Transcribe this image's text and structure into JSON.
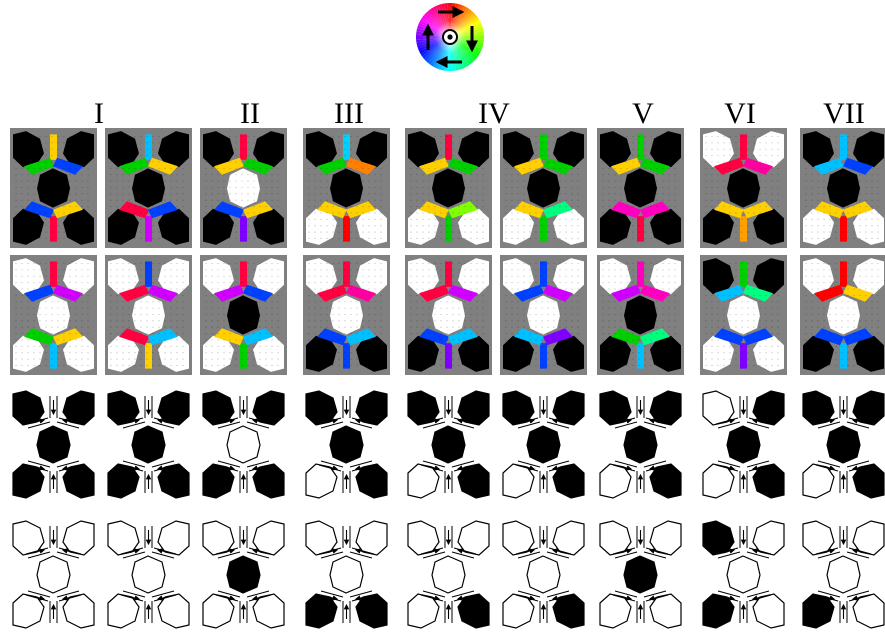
{
  "legend": {
    "name": "magnetization-color-wheel",
    "arrows": [
      "right",
      "down",
      "left",
      "up"
    ],
    "center": "out-of-plane"
  },
  "columns": [
    {
      "label": "I",
      "panels": 2
    },
    {
      "label": "II",
      "panels": 1
    },
    {
      "label": "III",
      "panels": 1
    },
    {
      "label": "IV",
      "panels": 2
    },
    {
      "label": "V",
      "panels": 1
    },
    {
      "label": "VI",
      "panels": 1
    },
    {
      "label": "VII",
      "panels": 1
    }
  ],
  "rows": {
    "sim_top": {
      "bg": "#808080",
      "panels": [
        {
          "top": "black",
          "center": "black",
          "bottom": "black",
          "upper": [
            "#ffd000",
            "#00d000",
            "#0040ff"
          ],
          "lower": [
            "#0040ff",
            "#ff0040",
            "#ffd000"
          ]
        },
        {
          "top": "black",
          "center": "black",
          "bottom": "black",
          "upper": [
            "#00c0ff",
            "#00d000",
            "#ffd000"
          ],
          "lower": [
            "#ff0040",
            "#d000ff",
            "#0040ff"
          ]
        },
        {
          "top": "black",
          "center": "white",
          "bottom": "black",
          "upper": [
            "#ff0040",
            "#ffd000",
            "#00d000"
          ],
          "lower": [
            "#0040ff",
            "#8000ff",
            "#ffd000"
          ]
        },
        {
          "top": "black",
          "center": "black",
          "bottom": "white",
          "upper": [
            "#00d0ff",
            "#00d000",
            "#ff8000"
          ],
          "lower": [
            "#ffd000",
            "#ff0000",
            "#ffd000"
          ]
        },
        {
          "top": "black",
          "center": "black",
          "bottom": "white",
          "upper": [
            "#ff0040",
            "#ffd000",
            "#00d000"
          ],
          "lower": [
            "#ffd000",
            "#00d000",
            "#80ff00"
          ]
        },
        {
          "top": "black",
          "center": "black",
          "bottom": "white",
          "upper": [
            "#00d000",
            "#ffd000",
            "#00d000"
          ],
          "lower": [
            "#ffd000",
            "#00d000",
            "#00ff80"
          ]
        },
        {
          "top": "black",
          "center": "black",
          "bottom": "black",
          "upper": [
            "#00d000",
            "#ffd000",
            "#00d000"
          ],
          "lower": [
            "#ff00c0",
            "#ff0040",
            "#ff00c0"
          ]
        },
        {
          "top": "white",
          "center": "black",
          "bottom": "black",
          "upper": [
            "#ff0040",
            "#ff0040",
            "#ff00a0"
          ],
          "lower": [
            "#ffd000",
            "#ffa000",
            "#ffd000"
          ]
        },
        {
          "top": "black",
          "center": "black",
          "bottom": "white",
          "upper": [
            "#00c0ff",
            "#00c0ff",
            "#0040ff"
          ],
          "lower": [
            "#ffd000",
            "#ff0000",
            "#ffd000"
          ]
        }
      ]
    },
    "sim_bottom": {
      "bg": "#808080",
      "panels": [
        {
          "top": "white",
          "center": "white",
          "bottom": "white",
          "upper": [
            "#ff0040",
            "#0040ff",
            "#d000ff"
          ],
          "lower": [
            "#00d000",
            "#00c0ff",
            "#ffd000"
          ]
        },
        {
          "top": "white",
          "center": "white",
          "bottom": "white",
          "upper": [
            "#0040ff",
            "#ff0040",
            "#d000ff"
          ],
          "lower": [
            "#ff0040",
            "#ffd000",
            "#00c0ff"
          ]
        },
        {
          "top": "white",
          "center": "black",
          "bottom": "white",
          "upper": [
            "#ff0040",
            "#d000ff",
            "#0040ff"
          ],
          "lower": [
            "#ffd000",
            "#00d000",
            "#00c0ff"
          ]
        },
        {
          "top": "white",
          "center": "white",
          "bottom": "black",
          "upper": [
            "#ff0040",
            "#ff0040",
            "#ff00a0"
          ],
          "lower": [
            "#0040ff",
            "#0040ff",
            "#00c0ff"
          ]
        },
        {
          "top": "white",
          "center": "white",
          "bottom": "black",
          "upper": [
            "#ff0040",
            "#ff0040",
            "#d000ff"
          ],
          "lower": [
            "#0040ff",
            "#8000ff",
            "#00c0ff"
          ]
        },
        {
          "top": "white",
          "center": "white",
          "bottom": "black",
          "upper": [
            "#0040ff",
            "#0040ff",
            "#d000ff"
          ],
          "lower": [
            "#00c0ff",
            "#0040ff",
            "#8000ff"
          ]
        },
        {
          "top": "white",
          "center": "black",
          "bottom": "black",
          "upper": [
            "#ff00c0",
            "#d000ff",
            "#ff00c0"
          ],
          "lower": [
            "#00d000",
            "#00c0ff",
            "#00ff80"
          ]
        },
        {
          "top": "black",
          "center": "white",
          "bottom": "white",
          "upper": [
            "#00d000",
            "#00c0ff",
            "#00ff80"
          ],
          "lower": [
            "#0040ff",
            "#8000ff",
            "#0040ff"
          ]
        },
        {
          "top": "white",
          "center": "white",
          "bottom": "black",
          "upper": [
            "#ff0000",
            "#ff0000",
            "#ffd000"
          ],
          "lower": [
            "#0040ff",
            "#00c0ff",
            "#0040ff"
          ]
        }
      ]
    },
    "schematic_top": {
      "panels": [
        {
          "tl": "black",
          "tr": "black",
          "c": "black",
          "bl": "black",
          "br": "black"
        },
        {
          "tl": "black",
          "tr": "black",
          "c": "black",
          "bl": "black",
          "br": "black"
        },
        {
          "tl": "black",
          "tr": "black",
          "c": "white",
          "bl": "black",
          "br": "black"
        },
        {
          "tl": "black",
          "tr": "black",
          "c": "black",
          "bl": "white",
          "br": "black"
        },
        {
          "tl": "black",
          "tr": "black",
          "c": "black",
          "bl": "white",
          "br": "black"
        },
        {
          "tl": "black",
          "tr": "black",
          "c": "black",
          "bl": "white",
          "br": "black"
        },
        {
          "tl": "black",
          "tr": "black",
          "c": "black",
          "bl": "white",
          "br": "black"
        },
        {
          "tl": "white",
          "tr": "black",
          "c": "black",
          "bl": "white",
          "br": "black"
        },
        {
          "tl": "black",
          "tr": "black",
          "c": "black",
          "bl": "white",
          "br": "black"
        }
      ]
    },
    "schematic_bottom": {
      "panels": [
        {
          "tl": "white",
          "tr": "white",
          "c": "white",
          "bl": "white",
          "br": "white"
        },
        {
          "tl": "white",
          "tr": "white",
          "c": "white",
          "bl": "white",
          "br": "white"
        },
        {
          "tl": "white",
          "tr": "white",
          "c": "black",
          "bl": "white",
          "br": "white"
        },
        {
          "tl": "white",
          "tr": "white",
          "c": "white",
          "bl": "black",
          "br": "black"
        },
        {
          "tl": "white",
          "tr": "white",
          "c": "white",
          "bl": "white",
          "br": "black"
        },
        {
          "tl": "white",
          "tr": "white",
          "c": "white",
          "bl": "white",
          "br": "black"
        },
        {
          "tl": "white",
          "tr": "white",
          "c": "black",
          "bl": "white",
          "br": "white"
        },
        {
          "tl": "black",
          "tr": "white",
          "c": "white",
          "bl": "black",
          "br": "white"
        },
        {
          "tl": "white",
          "tr": "white",
          "c": "white",
          "bl": "black",
          "br": "white"
        }
      ]
    }
  }
}
